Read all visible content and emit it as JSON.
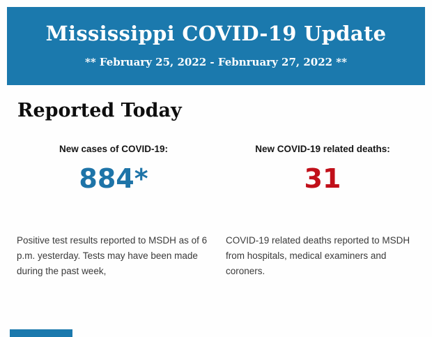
{
  "colors": {
    "brand_blue": "#1b79ad",
    "header_text": "#ffffff",
    "cases_blue": "#1e74a8",
    "deaths_red": "#c1101a"
  },
  "header": {
    "title": "Mississippi COVID-19 Update",
    "date_range": "** February 25, 2022 - Febnruary 27, 2022 **"
  },
  "section": {
    "title": "Reported Today"
  },
  "stats": [
    {
      "label": "New cases of COVID-19:",
      "value": "884*",
      "description": "Positive test results reported to MSDH as of 6 p.m. yesterday. Tests may have been made during the past week,"
    },
    {
      "label": "New COVID-19 related deaths:",
      "value": "31",
      "description": "COVID-19 related deaths reported to MSDH from hospitals, medical examiners and coroners."
    }
  ]
}
